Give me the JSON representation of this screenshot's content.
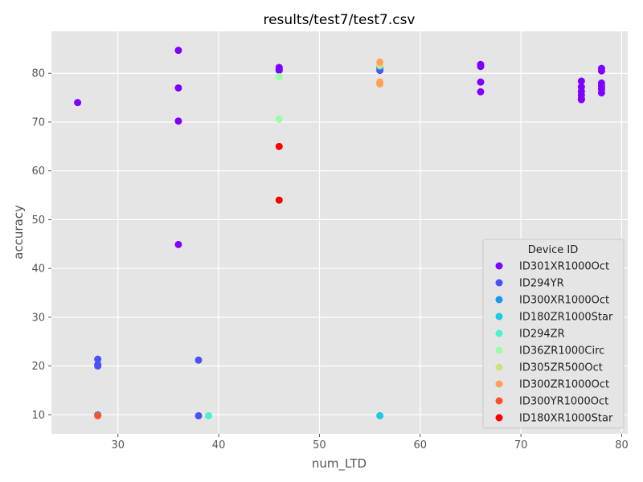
{
  "chart_data": {
    "type": "scatter",
    "title": "results/test7/test7.csv",
    "xlabel": "num_LTD",
    "ylabel": "accuracy",
    "xlim": [
      23.4,
      80.6
    ],
    "ylim": [
      6.1,
      88.6
    ],
    "xticks": [
      30,
      40,
      50,
      60,
      70,
      80
    ],
    "yticks": [
      10,
      20,
      30,
      40,
      50,
      60,
      70,
      80
    ],
    "grid": true,
    "background": "#E5E5E5",
    "legend": {
      "title": "Device ID",
      "placement": "lower-right"
    },
    "series": [
      {
        "name": "ID301XR1000Oct",
        "color": "#8000FF",
        "x": [
          26,
          36,
          36,
          36,
          36,
          46,
          46,
          46,
          66,
          66,
          66,
          66,
          76,
          76,
          76,
          76,
          76,
          76,
          78,
          78,
          78,
          78,
          78,
          78
        ],
        "y": [
          74.0,
          84.7,
          77.0,
          70.2,
          44.9,
          81.2,
          80.8,
          80.6,
          81.8,
          81.4,
          78.2,
          76.2,
          78.4,
          77.2,
          76.3,
          75.5,
          74.8,
          74.6,
          81.0,
          80.5,
          78.0,
          77.4,
          76.8,
          76.0
        ]
      },
      {
        "name": "ID294YR",
        "color": "#4B50F8",
        "x": [
          28,
          28,
          28,
          38,
          38,
          56,
          56
        ],
        "y": [
          21.4,
          20.3,
          20.0,
          21.2,
          9.8,
          81.0,
          80.6
        ]
      },
      {
        "name": "ID300XR1000Oct",
        "color": "#1996F3",
        "x": [
          56,
          28
        ],
        "y": [
          81.3,
          10.0
        ]
      },
      {
        "name": "ID180ZR1000Star",
        "color": "#1ACBE4",
        "x": [
          56
        ],
        "y": [
          9.8
        ]
      },
      {
        "name": "ID294ZR",
        "color": "#4CF2CE",
        "x": [
          39
        ],
        "y": [
          9.8
        ]
      },
      {
        "name": "ID36ZR1000Circ",
        "color": "#99FFA5",
        "x": [
          46,
          46
        ],
        "y": [
          79.3,
          70.6
        ]
      },
      {
        "name": "ID305ZR500Oct",
        "color": "#CCE27E",
        "x": [
          56
        ],
        "y": [
          81.6
        ]
      },
      {
        "name": "ID300ZR1000Oct",
        "color": "#FFA256",
        "x": [
          56,
          56,
          56
        ],
        "y": [
          82.3,
          78.2,
          77.8
        ]
      },
      {
        "name": "ID300YR1000Oct",
        "color": "#FF5030",
        "x": [
          28
        ],
        "y": [
          9.8
        ]
      },
      {
        "name": "ID180XR1000Star",
        "color": "#FF0000",
        "x": [
          46,
          46
        ],
        "y": [
          65.0,
          54.0
        ]
      }
    ]
  }
}
